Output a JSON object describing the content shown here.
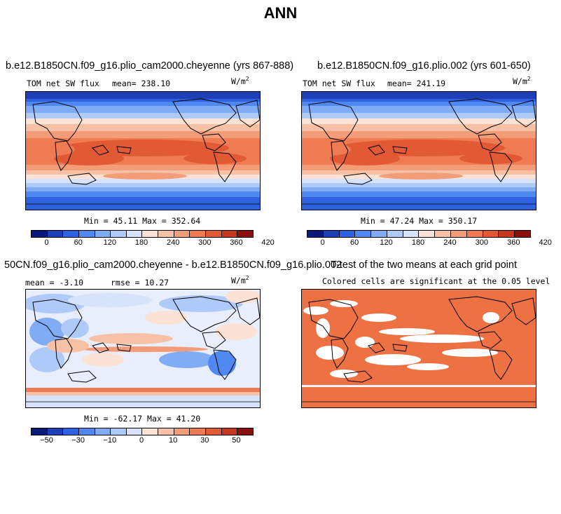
{
  "figure": {
    "title": "ANN"
  },
  "colors": {
    "sw_scale": [
      "#0a1a7a",
      "#1f3fb8",
      "#2f62e0",
      "#4f88f0",
      "#80acf5",
      "#aecaf8",
      "#d7e3fa",
      "#fbe2d4",
      "#f7c1a6",
      "#f39c78",
      "#ef7b53",
      "#e25a33",
      "#c4391d",
      "#8a1010"
    ],
    "diff_scale": [
      "#0a1a7a",
      "#1f3fb8",
      "#2f62e0",
      "#4f88f0",
      "#80acf5",
      "#aecaf8",
      "#d7e3fa",
      "#fbe2d4",
      "#f7c1a6",
      "#f39c78",
      "#ef7b53",
      "#e25a33",
      "#c4391d",
      "#8a1010"
    ],
    "signif": "#ee7144",
    "land_outline": "#000000"
  },
  "chart_data": [
    {
      "type": "heatmap",
      "panel": "top-left",
      "title": "b.e12.B1850CN.f09_g16.plio_cam2000.cheyenne (yrs 867-888)",
      "variable": "TOM net SW flux",
      "mean_label": "mean=",
      "mean_value": "238.10",
      "units": "W/m",
      "units_exp": "2",
      "min_label": "Min =",
      "min_value": "45.11",
      "max_label": "Max =",
      "max_value": "352.64",
      "colorbar_ticks": [
        "0",
        "60",
        "120",
        "180",
        "240",
        "300",
        "360",
        "420"
      ],
      "range": [
        0,
        450
      ]
    },
    {
      "type": "heatmap",
      "panel": "top-right",
      "title": "b.e12.B1850CN.f09_g16.plio.002 (yrs 601-650)",
      "variable": "TOM net SW flux",
      "mean_label": "mean=",
      "mean_value": "241.19",
      "units": "W/m",
      "units_exp": "2",
      "min_label": "Min =",
      "min_value": "47.24",
      "max_label": "Max =",
      "max_value": "350.17",
      "colorbar_ticks": [
        "0",
        "60",
        "120",
        "180",
        "240",
        "300",
        "360",
        "420"
      ],
      "range": [
        0,
        450
      ]
    },
    {
      "type": "heatmap",
      "panel": "bottom-left",
      "title": "50CN.f09_g16.plio_cam2000.cheyenne - b.e12.B1850CN.f09_g16.plio.002",
      "mean_label": "mean =",
      "mean_value": "-3.10",
      "rmse_label": "rmse =",
      "rmse_value": "10.27",
      "units": "W/m",
      "units_exp": "2",
      "min_label": "Min =",
      "min_value": "-62.17",
      "max_label": "Max =",
      "max_value": "41.20",
      "colorbar_ticks": [
        "−50",
        "−30",
        "−10",
        "0",
        "10",
        "30",
        "50"
      ],
      "range": [
        -70,
        70
      ]
    },
    {
      "type": "heatmap",
      "panel": "bottom-right",
      "title": "T-test of the two means at each grid point",
      "subtitle": "Colored cells are significant at the 0.05 level"
    }
  ]
}
